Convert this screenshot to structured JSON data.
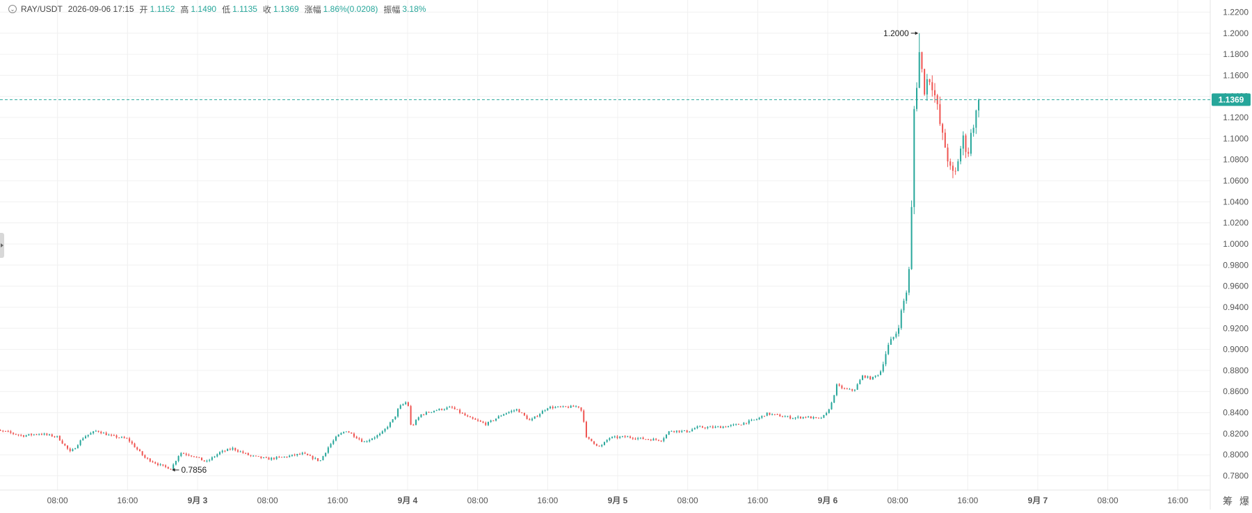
{
  "legend": {
    "symbol": "RAY/USDT",
    "datetime": "2026-09-06 17:15",
    "open_label": "开",
    "open": "1.1152",
    "high_label": "高",
    "high": "1.1490",
    "low_label": "低",
    "low": "1.1135",
    "close_label": "收",
    "close": "1.1369",
    "change_label": "涨幅",
    "change": "1.86%(0.0208)",
    "amplitude_label": "振幅",
    "amplitude": "3.18%"
  },
  "tools": {
    "chip_label": "筹",
    "burst_label": "爆"
  },
  "colors": {
    "up": "#26a69a",
    "down": "#ef5350",
    "grid": "#f0f0f0",
    "axis_text": "#555555",
    "price_tag": "#26a69a"
  },
  "chart_data": {
    "type": "candlestick",
    "symbol": "RAY/USDT",
    "interval": "15m",
    "y_ticks": [
      "0.7800",
      "0.8000",
      "0.8200",
      "0.8400",
      "0.8600",
      "0.8800",
      "0.9000",
      "0.9200",
      "0.9400",
      "0.9600",
      "0.9800",
      "1.0000",
      "1.0200",
      "1.0400",
      "1.0600",
      "1.0800",
      "1.1000",
      "1.1200",
      "1.1400",
      "1.1600",
      "1.1800",
      "1.2000",
      "1.2200"
    ],
    "ylim": [
      0.7665,
      1.2315
    ],
    "x_ticks": [
      {
        "label": "08:00",
        "day": 0,
        "hour": 8,
        "bold": false
      },
      {
        "label": "16:00",
        "day": 0,
        "hour": 16,
        "bold": false
      },
      {
        "label": "9月 3",
        "day": 1,
        "hour": 0,
        "bold": true
      },
      {
        "label": "08:00",
        "day": 1,
        "hour": 8,
        "bold": false
      },
      {
        "label": "16:00",
        "day": 1,
        "hour": 16,
        "bold": false
      },
      {
        "label": "9月 4",
        "day": 2,
        "hour": 0,
        "bold": true
      },
      {
        "label": "08:00",
        "day": 2,
        "hour": 8,
        "bold": false
      },
      {
        "label": "16:00",
        "day": 2,
        "hour": 16,
        "bold": false
      },
      {
        "label": "9月 5",
        "day": 3,
        "hour": 0,
        "bold": true
      },
      {
        "label": "08:00",
        "day": 3,
        "hour": 8,
        "bold": false
      },
      {
        "label": "16:00",
        "day": 3,
        "hour": 16,
        "bold": false
      },
      {
        "label": "9月 6",
        "day": 4,
        "hour": 0,
        "bold": true
      },
      {
        "label": "08:00",
        "day": 4,
        "hour": 8,
        "bold": false
      },
      {
        "label": "16:00",
        "day": 4,
        "hour": 16,
        "bold": false
      },
      {
        "label": "9月 7",
        "day": 5,
        "hour": 0,
        "bold": true
      },
      {
        "label": "08:00",
        "day": 5,
        "hour": 8,
        "bold": false
      },
      {
        "label": "16:00",
        "day": 5,
        "hour": 16,
        "bold": false
      }
    ],
    "last_price": 1.1369,
    "last_price_label": "1.1369",
    "max_marker": {
      "value": 1.2,
      "label": "1.2000",
      "day": 4,
      "hour": 10.5
    },
    "min_marker": {
      "value": 0.7856,
      "label": "0.7856",
      "day": 0,
      "hour": 21
    },
    "anchors": [
      {
        "day": -1,
        "hour": 24.0,
        "price": 0.798
      },
      {
        "day": 0,
        "hour": 0.5,
        "price": 0.823
      },
      {
        "day": 0,
        "hour": 2.0,
        "price": 0.822
      },
      {
        "day": 0,
        "hour": 4.0,
        "price": 0.818
      },
      {
        "day": 0,
        "hour": 6.0,
        "price": 0.82
      },
      {
        "day": 0,
        "hour": 8.0,
        "price": 0.817
      },
      {
        "day": 0,
        "hour": 9.5,
        "price": 0.802
      },
      {
        "day": 0,
        "hour": 11.0,
        "price": 0.817
      },
      {
        "day": 0,
        "hour": 12.5,
        "price": 0.823
      },
      {
        "day": 0,
        "hour": 14.0,
        "price": 0.818
      },
      {
        "day": 0,
        "hour": 16.0,
        "price": 0.815
      },
      {
        "day": 0,
        "hour": 18.0,
        "price": 0.797
      },
      {
        "day": 0,
        "hour": 20.0,
        "price": 0.789
      },
      {
        "day": 0,
        "hour": 21.0,
        "price": 0.787
      },
      {
        "day": 0,
        "hour": 22.0,
        "price": 0.802
      },
      {
        "day": 0,
        "hour": 23.5,
        "price": 0.799
      },
      {
        "day": 1,
        "hour": 1.0,
        "price": 0.793
      },
      {
        "day": 1,
        "hour": 2.5,
        "price": 0.802
      },
      {
        "day": 1,
        "hour": 4.0,
        "price": 0.806
      },
      {
        "day": 1,
        "hour": 6.0,
        "price": 0.799
      },
      {
        "day": 1,
        "hour": 8.0,
        "price": 0.796
      },
      {
        "day": 1,
        "hour": 10.0,
        "price": 0.798
      },
      {
        "day": 1,
        "hour": 12.0,
        "price": 0.801
      },
      {
        "day": 1,
        "hour": 14.0,
        "price": 0.794
      },
      {
        "day": 1,
        "hour": 15.0,
        "price": 0.808
      },
      {
        "day": 1,
        "hour": 16.0,
        "price": 0.818
      },
      {
        "day": 1,
        "hour": 17.0,
        "price": 0.823
      },
      {
        "day": 1,
        "hour": 19.0,
        "price": 0.812
      },
      {
        "day": 1,
        "hour": 21.0,
        "price": 0.82
      },
      {
        "day": 1,
        "hour": 22.5,
        "price": 0.835
      },
      {
        "day": 1,
        "hour": 23.0,
        "price": 0.845
      },
      {
        "day": 2,
        "hour": 0.0,
        "price": 0.851
      },
      {
        "day": 2,
        "hour": 0.4,
        "price": 0.826
      },
      {
        "day": 2,
        "hour": 1.5,
        "price": 0.838
      },
      {
        "day": 2,
        "hour": 3.0,
        "price": 0.842
      },
      {
        "day": 2,
        "hour": 5.0,
        "price": 0.845
      },
      {
        "day": 2,
        "hour": 7.0,
        "price": 0.835
      },
      {
        "day": 2,
        "hour": 9.0,
        "price": 0.829
      },
      {
        "day": 2,
        "hour": 11.0,
        "price": 0.839
      },
      {
        "day": 2,
        "hour": 12.5,
        "price": 0.843
      },
      {
        "day": 2,
        "hour": 14.0,
        "price": 0.832
      },
      {
        "day": 2,
        "hour": 16.0,
        "price": 0.845
      },
      {
        "day": 2,
        "hour": 18.0,
        "price": 0.845
      },
      {
        "day": 2,
        "hour": 19.5,
        "price": 0.846
      },
      {
        "day": 2,
        "hour": 20.0,
        "price": 0.84
      },
      {
        "day": 2,
        "hour": 20.4,
        "price": 0.816
      },
      {
        "day": 2,
        "hour": 21.0,
        "price": 0.813
      },
      {
        "day": 2,
        "hour": 22.0,
        "price": 0.807
      },
      {
        "day": 2,
        "hour": 23.0,
        "price": 0.816
      },
      {
        "day": 3,
        "hour": 1.0,
        "price": 0.817
      },
      {
        "day": 3,
        "hour": 3.0,
        "price": 0.815
      },
      {
        "day": 3,
        "hour": 5.0,
        "price": 0.814
      },
      {
        "day": 3,
        "hour": 6.0,
        "price": 0.823
      },
      {
        "day": 3,
        "hour": 8.0,
        "price": 0.822
      },
      {
        "day": 3,
        "hour": 9.0,
        "price": 0.826
      },
      {
        "day": 3,
        "hour": 11.0,
        "price": 0.826
      },
      {
        "day": 3,
        "hour": 12.5,
        "price": 0.827
      },
      {
        "day": 3,
        "hour": 14.0,
        "price": 0.829
      },
      {
        "day": 3,
        "hour": 16.0,
        "price": 0.834
      },
      {
        "day": 3,
        "hour": 17.0,
        "price": 0.839
      },
      {
        "day": 3,
        "hour": 18.5,
        "price": 0.837
      },
      {
        "day": 3,
        "hour": 20.0,
        "price": 0.835
      },
      {
        "day": 3,
        "hour": 21.5,
        "price": 0.836
      },
      {
        "day": 3,
        "hour": 23.0,
        "price": 0.834
      },
      {
        "day": 3,
        "hour": 23.8,
        "price": 0.838
      },
      {
        "day": 4,
        "hour": 0.5,
        "price": 0.85
      },
      {
        "day": 4,
        "hour": 1.0,
        "price": 0.866
      },
      {
        "day": 4,
        "hour": 2.0,
        "price": 0.862
      },
      {
        "day": 4,
        "hour": 3.0,
        "price": 0.861
      },
      {
        "day": 4,
        "hour": 4.0,
        "price": 0.875
      },
      {
        "day": 4,
        "hour": 5.0,
        "price": 0.872
      },
      {
        "day": 4,
        "hour": 6.0,
        "price": 0.878
      },
      {
        "day": 4,
        "hour": 6.5,
        "price": 0.893
      },
      {
        "day": 4,
        "hour": 7.0,
        "price": 0.905
      },
      {
        "day": 4,
        "hour": 8.0,
        "price": 0.918
      },
      {
        "day": 4,
        "hour": 8.5,
        "price": 0.94
      },
      {
        "day": 4,
        "hour": 9.0,
        "price": 0.955
      },
      {
        "day": 4,
        "hour": 9.5,
        "price": 0.99
      },
      {
        "day": 4,
        "hour": 9.75,
        "price": 1.12
      },
      {
        "day": 4,
        "hour": 10.0,
        "price": 1.135
      },
      {
        "day": 4,
        "hour": 10.5,
        "price": 1.185
      },
      {
        "day": 4,
        "hour": 11.0,
        "price": 1.145
      },
      {
        "day": 4,
        "hour": 11.5,
        "price": 1.16
      },
      {
        "day": 4,
        "hour": 12.0,
        "price": 1.15
      },
      {
        "day": 4,
        "hour": 12.5,
        "price": 1.13
      },
      {
        "day": 4,
        "hour": 13.0,
        "price": 1.105
      },
      {
        "day": 4,
        "hour": 13.5,
        "price": 1.09
      },
      {
        "day": 4,
        "hour": 14.0,
        "price": 1.07
      },
      {
        "day": 4,
        "hour": 14.5,
        "price": 1.063
      },
      {
        "day": 4,
        "hour": 15.0,
        "price": 1.085
      },
      {
        "day": 4,
        "hour": 15.5,
        "price": 1.1
      },
      {
        "day": 4,
        "hour": 16.0,
        "price": 1.085
      },
      {
        "day": 4,
        "hour": 16.5,
        "price": 1.11
      },
      {
        "day": 4,
        "hour": 17.0,
        "price": 1.125
      },
      {
        "day": 4,
        "hour": 17.25,
        "price": 1.1369
      }
    ],
    "candles_total": 385
  }
}
